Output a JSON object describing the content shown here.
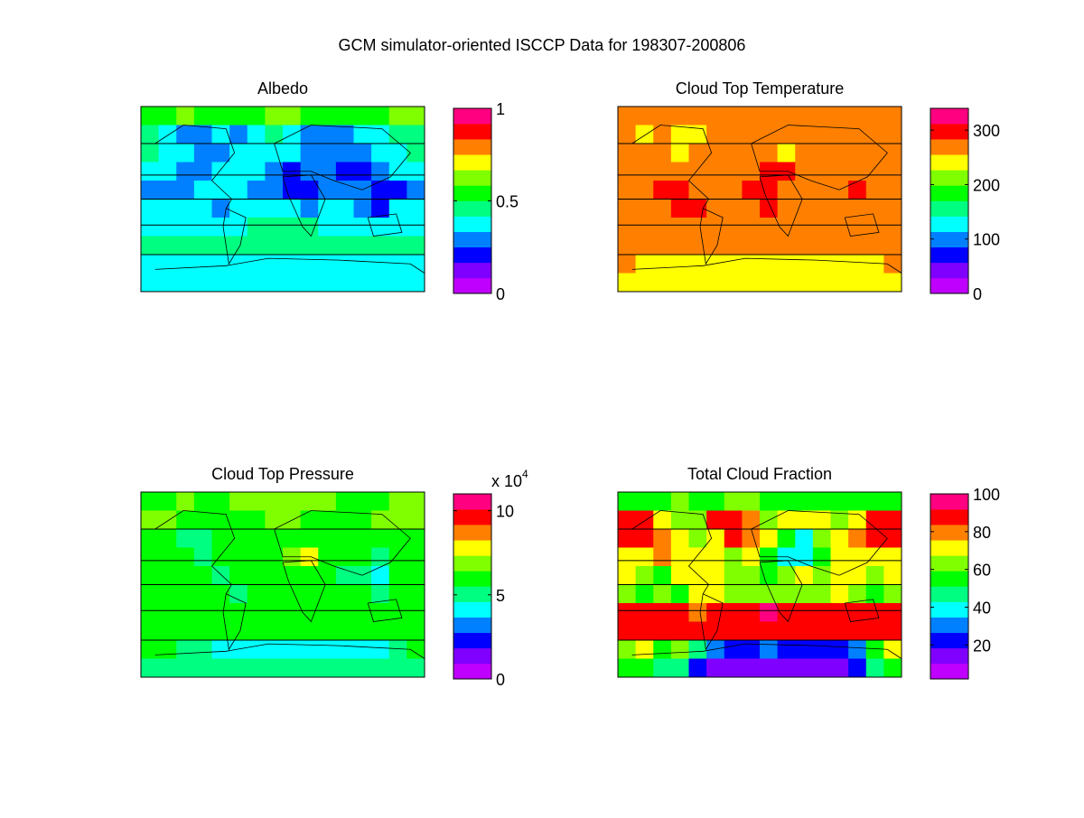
{
  "chart_data": {
    "type": "heatmap",
    "title": "GCM simulator-oriented ISCCP Data for 198307-200806",
    "colormap": [
      "#bf00ff",
      "#8000ff",
      "#0000ff",
      "#0080ff",
      "#00ffff",
      "#00ff80",
      "#00ff00",
      "#80ff00",
      "#ffff00",
      "#ff8000",
      "#ff0000",
      "#ff0080"
    ],
    "panels": [
      {
        "title": "Albedo",
        "clim": [
          0,
          1
        ],
        "ticks": [
          0,
          0.5,
          1
        ],
        "tick_labels": [
          "0",
          "0.5",
          "1"
        ],
        "exponent_label": "",
        "grid": [
          [
            6,
            6,
            7,
            6,
            6,
            6,
            6,
            7,
            7,
            6,
            6,
            6,
            6,
            6,
            7,
            7
          ],
          [
            5,
            4,
            3,
            3,
            4,
            3,
            4,
            5,
            4,
            3,
            3,
            3,
            4,
            4,
            5,
            5
          ],
          [
            5,
            4,
            4,
            3,
            3,
            4,
            4,
            4,
            4,
            3,
            3,
            3,
            3,
            4,
            4,
            5
          ],
          [
            4,
            4,
            3,
            3,
            4,
            4,
            4,
            3,
            2,
            3,
            3,
            2,
            2,
            3,
            4,
            4
          ],
          [
            3,
            3,
            3,
            4,
            4,
            4,
            3,
            3,
            2,
            2,
            3,
            3,
            3,
            2,
            2,
            3
          ],
          [
            4,
            4,
            4,
            4,
            3,
            4,
            4,
            4,
            4,
            3,
            4,
            4,
            3,
            2,
            4,
            4
          ],
          [
            4,
            4,
            4,
            4,
            4,
            4,
            5,
            5,
            5,
            5,
            4,
            4,
            4,
            4,
            4,
            4
          ],
          [
            5,
            5,
            5,
            5,
            5,
            5,
            5,
            5,
            5,
            5,
            5,
            5,
            5,
            5,
            5,
            5
          ],
          [
            4,
            4,
            4,
            4,
            4,
            4,
            4,
            4,
            4,
            4,
            4,
            4,
            4,
            4,
            4,
            4
          ],
          [
            4,
            4,
            4,
            4,
            4,
            4,
            4,
            4,
            4,
            4,
            4,
            4,
            4,
            4,
            4,
            4
          ]
        ]
      },
      {
        "title": "Cloud Top Temperature",
        "clim": [
          0,
          340
        ],
        "ticks": [
          0,
          100,
          200,
          300
        ],
        "tick_labels": [
          "0",
          "100",
          "200",
          "300"
        ],
        "exponent_label": "",
        "grid": [
          [
            9,
            9,
            9,
            9,
            9,
            9,
            9,
            9,
            9,
            9,
            9,
            9,
            9,
            9,
            9,
            9
          ],
          [
            9,
            8,
            9,
            8,
            8,
            9,
            9,
            9,
            9,
            9,
            9,
            9,
            9,
            9,
            9,
            9
          ],
          [
            9,
            9,
            9,
            8,
            9,
            9,
            9,
            9,
            9,
            8,
            9,
            9,
            9,
            9,
            9,
            9
          ],
          [
            9,
            9,
            9,
            9,
            9,
            9,
            9,
            9,
            10,
            10,
            9,
            9,
            9,
            9,
            9,
            9
          ],
          [
            9,
            9,
            10,
            10,
            9,
            9,
            9,
            10,
            10,
            9,
            9,
            9,
            9,
            10,
            9,
            9
          ],
          [
            9,
            9,
            9,
            10,
            10,
            9,
            9,
            9,
            10,
            9,
            9,
            9,
            9,
            9,
            9,
            9
          ],
          [
            9,
            9,
            9,
            9,
            9,
            9,
            9,
            9,
            9,
            9,
            9,
            9,
            9,
            9,
            9,
            9
          ],
          [
            9,
            9,
            9,
            9,
            9,
            9,
            9,
            9,
            9,
            9,
            9,
            9,
            9,
            9,
            9,
            9
          ],
          [
            9,
            8,
            8,
            8,
            8,
            8,
            8,
            8,
            8,
            8,
            8,
            8,
            8,
            8,
            8,
            9
          ],
          [
            8,
            8,
            8,
            8,
            8,
            8,
            8,
            8,
            8,
            8,
            8,
            8,
            8,
            8,
            8,
            8
          ]
        ]
      },
      {
        "title": "Cloud Top Pressure",
        "clim": [
          0,
          11
        ],
        "ticks": [
          0,
          5,
          10
        ],
        "tick_labels": [
          "0",
          "5",
          "10"
        ],
        "exponent_label": "x 10^4",
        "grid": [
          [
            6,
            6,
            7,
            6,
            6,
            7,
            7,
            7,
            7,
            7,
            7,
            6,
            6,
            6,
            7,
            7
          ],
          [
            7,
            7,
            6,
            6,
            6,
            6,
            6,
            7,
            7,
            6,
            6,
            6,
            6,
            7,
            7,
            7
          ],
          [
            6,
            6,
            5,
            5,
            6,
            6,
            6,
            6,
            6,
            6,
            6,
            6,
            6,
            6,
            6,
            6
          ],
          [
            6,
            6,
            6,
            5,
            6,
            6,
            6,
            6,
            7,
            8,
            6,
            6,
            6,
            5,
            6,
            6
          ],
          [
            6,
            6,
            6,
            6,
            5,
            6,
            6,
            6,
            6,
            6,
            6,
            5,
            5,
            4,
            6,
            6
          ],
          [
            6,
            6,
            6,
            6,
            6,
            5,
            6,
            6,
            6,
            6,
            6,
            6,
            6,
            5,
            6,
            6
          ],
          [
            6,
            6,
            6,
            6,
            6,
            6,
            6,
            6,
            6,
            6,
            6,
            6,
            6,
            6,
            6,
            6
          ],
          [
            6,
            6,
            6,
            6,
            6,
            6,
            6,
            6,
            6,
            6,
            6,
            6,
            6,
            6,
            6,
            6
          ],
          [
            6,
            6,
            5,
            5,
            4,
            4,
            4,
            4,
            4,
            4,
            4,
            4,
            4,
            4,
            5,
            6
          ],
          [
            5,
            5,
            5,
            5,
            5,
            5,
            5,
            5,
            5,
            5,
            5,
            5,
            5,
            5,
            5,
            5
          ]
        ]
      },
      {
        "title": "Total Cloud Fraction",
        "clim": [
          2,
          100
        ],
        "ticks": [
          20,
          40,
          60,
          80,
          100
        ],
        "tick_labels": [
          "20",
          "40",
          "60",
          "80",
          "100"
        ],
        "exponent_label": "",
        "grid": [
          [
            6,
            6,
            6,
            7,
            6,
            6,
            7,
            7,
            6,
            6,
            6,
            6,
            6,
            6,
            6,
            6
          ],
          [
            10,
            10,
            8,
            7,
            7,
            10,
            10,
            9,
            7,
            8,
            8,
            8,
            7,
            8,
            10,
            10
          ],
          [
            10,
            10,
            9,
            8,
            7,
            8,
            10,
            9,
            8,
            6,
            4,
            7,
            8,
            9,
            10,
            10
          ],
          [
            8,
            8,
            9,
            8,
            8,
            8,
            7,
            8,
            6,
            4,
            4,
            6,
            8,
            8,
            8,
            8
          ],
          [
            8,
            7,
            6,
            8,
            8,
            8,
            7,
            7,
            6,
            7,
            8,
            7,
            8,
            8,
            7,
            8
          ],
          [
            7,
            6,
            7,
            6,
            8,
            8,
            7,
            7,
            7,
            7,
            7,
            7,
            8,
            7,
            6,
            7
          ],
          [
            10,
            10,
            10,
            10,
            9,
            10,
            10,
            10,
            11,
            10,
            10,
            10,
            10,
            10,
            10,
            10
          ],
          [
            10,
            10,
            10,
            10,
            10,
            10,
            10,
            10,
            10,
            10,
            10,
            10,
            10,
            10,
            10,
            10
          ],
          [
            7,
            8,
            6,
            7,
            5,
            3,
            2,
            2,
            3,
            2,
            2,
            2,
            2,
            3,
            6,
            8
          ],
          [
            6,
            6,
            5,
            5,
            2,
            1,
            1,
            1,
            1,
            1,
            1,
            1,
            1,
            2,
            5,
            6
          ]
        ]
      }
    ]
  }
}
